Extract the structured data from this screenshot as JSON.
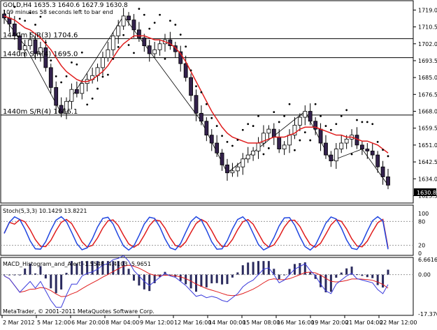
{
  "header": {
    "symbol_line": "GOLD,H4  1635.3 1640.6 1627.9 1630.8",
    "timer_line": "109 minutes 58 seconds left to bar end"
  },
  "levels": [
    {
      "label": "1440m S/R(3) 1704.6",
      "price": 1704.6
    },
    {
      "label": "1440m S/R(4) 1695.0",
      "price": 1695.0
    },
    {
      "label": "1440m S/R(4) 1666.1",
      "price": 1666.1
    }
  ],
  "price_axis": {
    "ticks": [
      "1719.0",
      "1710.5",
      "1702.0",
      "1693.5",
      "1685.0",
      "1676.5",
      "1668.0",
      "1659.5",
      "1651.0",
      "1642.5",
      "1634.0",
      "1625.5"
    ],
    "range": [
      1622.5,
      1723.0
    ],
    "current_price": "1630.8"
  },
  "stoch": {
    "title": "Stoch(5,3,3) 10.1429 13.8221",
    "ticks": [
      "100",
      "80",
      "20",
      "0"
    ]
  },
  "macd": {
    "title": "MACD_Histogram_and_Alert -1.5548 -4.4103 -5.9651",
    "ticks": [
      "6.6616",
      "0.00",
      "-17.3708"
    ],
    "range": [
      -17.3708,
      6.6616
    ]
  },
  "time_axis": {
    "ticks": [
      "2 Mar 2012",
      "5 Mar 12:00",
      "6 Mar 20:00",
      "8 Mar 04:00",
      "9 Mar 12:00",
      "12 Mar 16:00",
      "14 Mar 00:00",
      "15 Mar 08:00",
      "16 Mar 16:00",
      "19 Mar 20:00",
      "21 Mar 04:00",
      "22 Mar 12:00"
    ]
  },
  "copyright": "MetaTrader, © 2001-2011 MetaQuotes Software Corp.",
  "colors": {
    "bull": "#ffffff",
    "bear": "#33214c",
    "ma": "#e01c1c",
    "sar": "#000000",
    "stoch_main": "#2046e0",
    "stoch_signal": "#e01c1c",
    "macd_main": "#3b3bdc",
    "macd_signal": "#e01c1c",
    "line_level": "#000000"
  },
  "chart_data": {
    "type": "candlestick",
    "symbol": "GOLD",
    "timeframe": "H4",
    "closes": [
      1715,
      1712,
      1706,
      1699,
      1701,
      1704,
      1697,
      1700,
      1690,
      1680,
      1671,
      1667,
      1673,
      1679,
      1677,
      1682,
      1684,
      1686,
      1690,
      1695,
      1699,
      1706,
      1711,
      1716,
      1714,
      1709,
      1705,
      1701,
      1697,
      1699,
      1702,
      1704,
      1701,
      1698,
      1692,
      1685,
      1676,
      1667,
      1663,
      1656,
      1652,
      1647,
      1641,
      1637,
      1638,
      1640,
      1644,
      1646,
      1648,
      1652,
      1657,
      1659,
      1655,
      1649,
      1651,
      1656,
      1661,
      1665,
      1668,
      1663,
      1659,
      1652,
      1646,
      1643,
      1649,
      1652,
      1654,
      1656,
      1651,
      1649,
      1648,
      1646,
      1640,
      1635,
      1630.8
    ],
    "ma_values": [
      1716,
      1715,
      1714,
      1712,
      1710,
      1709,
      1707,
      1705,
      1702,
      1699,
      1695,
      1691,
      1688,
      1686,
      1684,
      1683,
      1683,
      1684,
      1686,
      1688,
      1691,
      1695,
      1699,
      1702,
      1704,
      1706,
      1706,
      1706,
      1705,
      1704,
      1704,
      1703,
      1702,
      1700,
      1697,
      1693,
      1688,
      1683,
      1678,
      1673,
      1668,
      1664,
      1660,
      1657,
      1655,
      1654,
      1653,
      1652,
      1652,
      1652,
      1653,
      1654,
      1655,
      1655,
      1655,
      1656,
      1657,
      1659,
      1660,
      1660,
      1660,
      1659,
      1658,
      1657,
      1656,
      1656,
      1655,
      1655,
      1654,
      1653,
      1653,
      1652,
      1651,
      1649,
      1647
    ],
    "stoch_main_last": 10.1429,
    "stoch_signal_last": 13.8221,
    "macd_histogram_last": -1.5548,
    "macd_main_last": -4.4103,
    "macd_signal_last": -5.9651
  }
}
